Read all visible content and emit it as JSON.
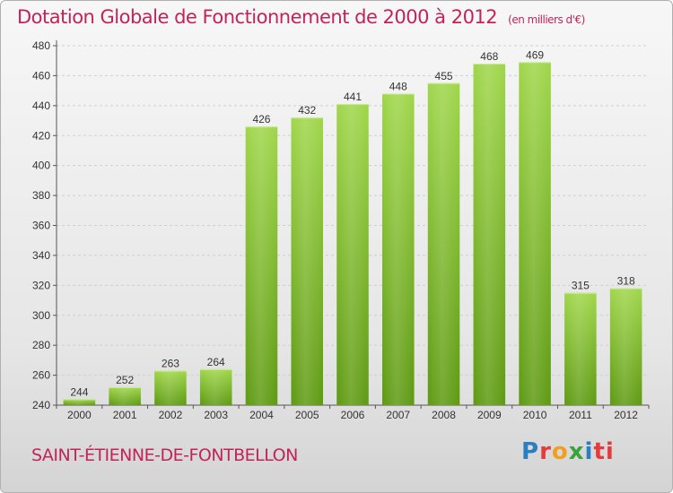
{
  "header": {
    "title": "Dotation Globale de Fonctionnement de 2000 à 2012",
    "unit": "(en milliers d'€)"
  },
  "footer": {
    "commune": "SAINT-ÉTIENNE-DE-FONTBELLON",
    "logo_letters": [
      "P",
      "r",
      "o",
      "x",
      "i",
      "ti"
    ]
  },
  "colors": {
    "title": "#c0245a",
    "bar_top": "#9fd64a",
    "bar_bottom": "#5e9a12",
    "grid": "#cfcfcf"
  },
  "chart_data": {
    "type": "bar",
    "title": "Dotation Globale de Fonctionnement de 2000 à 2012",
    "subtitle": "(en milliers d'€)",
    "xlabel": "",
    "ylabel": "",
    "categories": [
      "2000",
      "2001",
      "2002",
      "2003",
      "2004",
      "2005",
      "2006",
      "2007",
      "2008",
      "2009",
      "2010",
      "2011",
      "2012"
    ],
    "values": [
      244,
      252,
      263,
      264,
      426,
      432,
      441,
      448,
      455,
      468,
      469,
      315,
      318
    ],
    "ylim": [
      240,
      480
    ],
    "yticks": [
      240,
      260,
      280,
      300,
      320,
      340,
      360,
      380,
      400,
      420,
      440,
      460,
      480
    ],
    "grid": true,
    "data_labels": true
  }
}
